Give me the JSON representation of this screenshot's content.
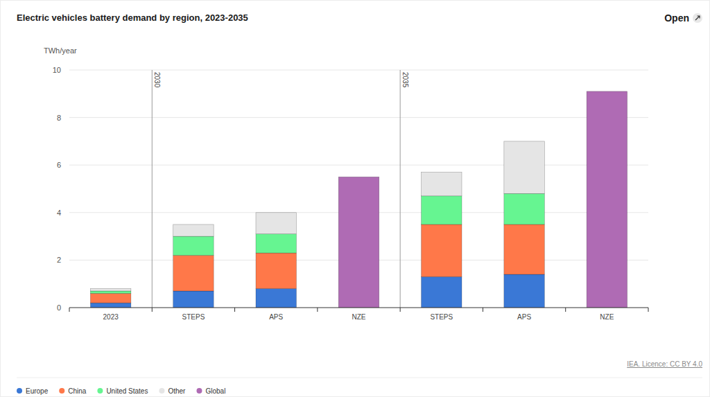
{
  "chart_data": {
    "type": "bar",
    "title": "Electric vehicles battery demand by region, 2023-2035",
    "y_label": "TWh/year",
    "source": "IEA. Licence: CC BY 4.0",
    "button": "Open",
    "stacked": true,
    "grid": true,
    "legend": "bottom-left",
    "categories": [
      "2023",
      "STEPS",
      "APS",
      "NZE",
      "STEPS",
      "APS",
      "NZE"
    ],
    "annotations": [
      {
        "text": "2030",
        "category_index": 1
      },
      {
        "text": "2035",
        "category_index": 4
      }
    ],
    "series": [
      {
        "name": "Europe",
        "color": "#3a78d6",
        "values": [
          0.2,
          0.7,
          0.8,
          null,
          1.3,
          1.4,
          null
        ]
      },
      {
        "name": "China",
        "color": "#ff7849",
        "values": [
          0.4,
          1.5,
          1.5,
          null,
          2.2,
          2.1,
          null
        ]
      },
      {
        "name": "United States",
        "color": "#66f591",
        "values": [
          0.1,
          0.8,
          0.8,
          null,
          1.2,
          1.3,
          null
        ]
      },
      {
        "name": "Other",
        "color": "#e5e5e5",
        "values": [
          0.1,
          0.5,
          0.9,
          null,
          1.0,
          2.2,
          null
        ]
      },
      {
        "name": "Global",
        "color": "#af6bb4",
        "values": [
          null,
          null,
          null,
          5.5,
          null,
          null,
          9.1
        ]
      }
    ],
    "ylim": [
      0,
      10
    ],
    "yticks": [
      0,
      2,
      4,
      6,
      8,
      10
    ]
  }
}
